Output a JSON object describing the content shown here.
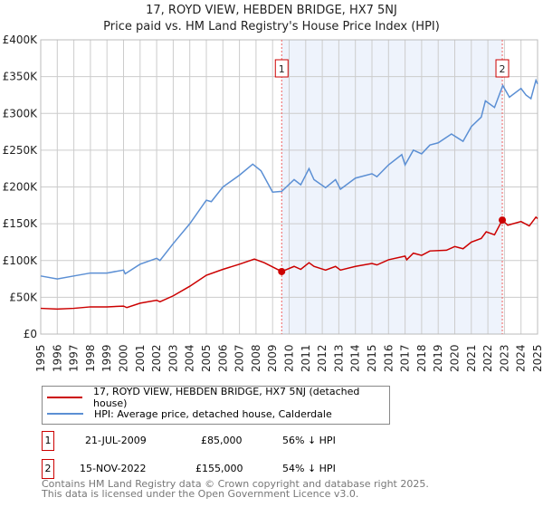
{
  "chart_data": {
    "type": "line",
    "title": "17, ROYD VIEW, HEBDEN BRIDGE, HX7 5NJ",
    "subtitle": "Price paid vs. HM Land Registry's House Price Index (HPI)",
    "xlim": [
      1995,
      2025
    ],
    "ylim": [
      0,
      400000
    ],
    "y_ticks": [
      {
        "v": 0,
        "label": "£0"
      },
      {
        "v": 50000,
        "label": "£50K"
      },
      {
        "v": 100000,
        "label": "£100K"
      },
      {
        "v": 150000,
        "label": "£150K"
      },
      {
        "v": 200000,
        "label": "£200K"
      },
      {
        "v": 250000,
        "label": "£250K"
      },
      {
        "v": 300000,
        "label": "£300K"
      },
      {
        "v": 350000,
        "label": "£350K"
      },
      {
        "v": 400000,
        "label": "£400K"
      }
    ],
    "x_ticks": [
      "1995",
      "1996",
      "1997",
      "1998",
      "1999",
      "2000",
      "2001",
      "2002",
      "2003",
      "2004",
      "2005",
      "2006",
      "2007",
      "2008",
      "2009",
      "2010",
      "2011",
      "2012",
      "2013",
      "2014",
      "2015",
      "2016",
      "2017",
      "2018",
      "2019",
      "2020",
      "2021",
      "2022",
      "2023",
      "2024",
      "2025"
    ],
    "grid": true,
    "series": [
      {
        "name": "17, ROYD VIEW, HEBDEN BRIDGE, HX7 5NJ (detached house)",
        "color": "#cc0000",
        "x": [
          1995,
          1996,
          1997,
          1998,
          1999,
          2000,
          2000.2,
          2001,
          2002,
          2002.2,
          2003,
          2004,
          2005,
          2006,
          2007,
          2007.9,
          2008.5,
          2009.55,
          2010.3,
          2010.7,
          2011.2,
          2011.5,
          2012.2,
          2012.8,
          2013.1,
          2014,
          2015,
          2015.3,
          2016,
          2017,
          2017.1,
          2017.5,
          2018,
          2018.5,
          2019.5,
          2020,
          2020.5,
          2021,
          2021.6,
          2021.9,
          2022.4,
          2022.87,
          2023.2,
          2024,
          2024.5,
          2024.9,
          2025
        ],
        "y": [
          35000,
          34000,
          35000,
          37000,
          37000,
          38000,
          36000,
          42000,
          46000,
          44000,
          52000,
          65000,
          80000,
          88000,
          95000,
          102000,
          97000,
          85000,
          92000,
          88000,
          97000,
          92000,
          87000,
          92000,
          87000,
          92000,
          96000,
          94000,
          101000,
          106000,
          101000,
          110000,
          107000,
          113000,
          114000,
          119000,
          116000,
          125000,
          130000,
          139000,
          135000,
          155000,
          148000,
          153000,
          147000,
          159000,
          157000
        ]
      },
      {
        "name": "HPI: Average price, detached house, Calderdale",
        "color": "#5b8fd4",
        "x": [
          1995,
          1996,
          1997,
          1998,
          1999,
          2000,
          2000.1,
          2001,
          2002,
          2002.2,
          2003,
          2004,
          2005,
          2005.3,
          2006,
          2007,
          2007.8,
          2008.3,
          2009,
          2009.55,
          2010.3,
          2010.7,
          2011.2,
          2011.5,
          2012.2,
          2012.8,
          2013.1,
          2014,
          2015,
          2015.3,
          2016,
          2016.8,
          2017,
          2017.5,
          2018,
          2018.5,
          2019,
          2019.8,
          2020.5,
          2021,
          2021.6,
          2021.85,
          2022.4,
          2022.9,
          2023.3,
          2024,
          2024.3,
          2024.6,
          2024.9,
          2025
        ],
        "y": [
          79000,
          75000,
          79000,
          83000,
          83000,
          87000,
          82000,
          95000,
          103000,
          100000,
          123000,
          150000,
          182000,
          180000,
          200000,
          216000,
          231000,
          222000,
          193000,
          194000,
          210000,
          203000,
          225000,
          210000,
          199000,
          210000,
          197000,
          212000,
          218000,
          214000,
          230000,
          244000,
          230000,
          250000,
          245000,
          257000,
          260000,
          272000,
          262000,
          282000,
          295000,
          317000,
          308000,
          338000,
          322000,
          334000,
          325000,
          320000,
          345000,
          340000
        ]
      }
    ],
    "sales": [
      {
        "id": "1",
        "x": 2009.55,
        "y": 85000,
        "date": "21-JUL-2009",
        "price": "£85,000",
        "hpi": "56% ↓ HPI"
      },
      {
        "id": "2",
        "x": 2022.87,
        "y": 155000,
        "date": "15-NOV-2022",
        "price": "£155,000",
        "hpi": "54% ↓ HPI"
      }
    ],
    "shade_color": "#eef3fc"
  },
  "footer": {
    "line1": "Contains HM Land Registry data © Crown copyright and database right 2025.",
    "line2": "This data is licensed under the Open Government Licence v3.0."
  }
}
